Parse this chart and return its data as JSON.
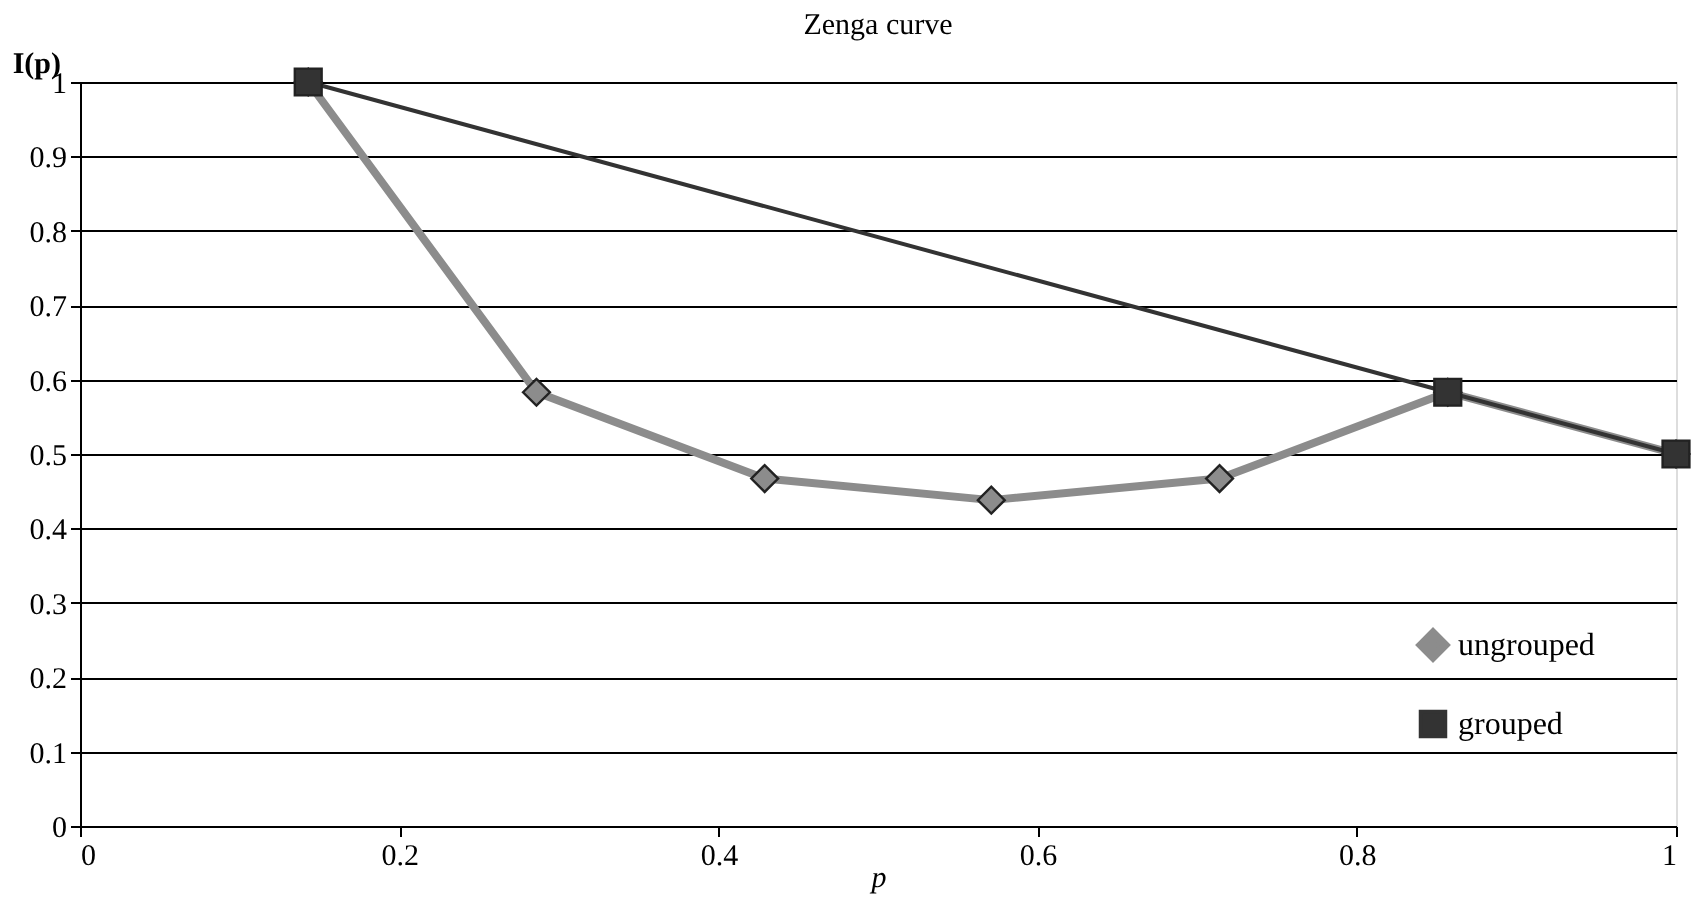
{
  "chart_data": {
    "type": "line",
    "title": "Zenga curve",
    "xlabel": "p",
    "ylabel": "I(p)",
    "xlim": [
      0,
      1
    ],
    "xticks": [
      0,
      0.2,
      0.4,
      0.6,
      0.8,
      1
    ],
    "ylim": [
      0,
      1
    ],
    "yticks": [
      0,
      0.1,
      0.2,
      0.3,
      0.4,
      0.5,
      0.6,
      0.7,
      0.8,
      0.9,
      1
    ],
    "grid": "y",
    "legend": "bottom right",
    "series": [
      {
        "name": "ungrouped",
        "color": "#8c8c8c",
        "marker": "diamond",
        "x": [
          0.143,
          0.286,
          0.429,
          0.571,
          0.714,
          0.857,
          1
        ],
        "values": [
          1,
          0.583,
          0.467,
          0.438,
          0.467,
          0.583,
          0.5
        ]
      },
      {
        "name": "grouped",
        "color": "#333333",
        "marker": "square",
        "x": [
          0.143,
          0.857,
          1
        ],
        "values": [
          1,
          0.583,
          0.5
        ]
      }
    ]
  }
}
